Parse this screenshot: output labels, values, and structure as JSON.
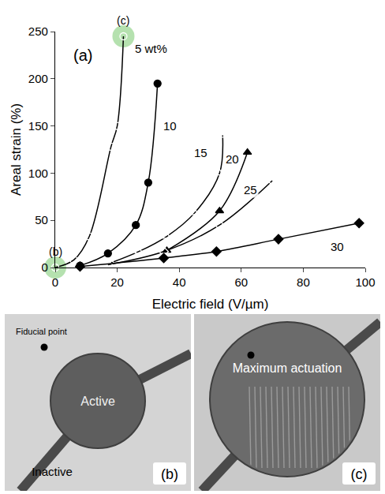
{
  "chart_data": {
    "type": "scatter",
    "x_label": "Electric field (V/µm)",
    "y_label": "Areal strain (%)",
    "xlim": [
      0,
      100
    ],
    "xticks": [
      0,
      20,
      40,
      60,
      80,
      100
    ],
    "ylim": [
      0,
      250
    ],
    "yticks": [
      0,
      50,
      100,
      150,
      200,
      250
    ],
    "grid": false,
    "series": [
      {
        "name": "5 wt%",
        "color": "#000000",
        "marker": "circle-open",
        "line_style": "solid",
        "x": [
          0,
          6,
          11,
          18,
          20,
          22
        ],
        "values": [
          0,
          8,
          33,
          128,
          150,
          245
        ],
        "label_x": 31,
        "label_y": 232
      },
      {
        "name": "10",
        "color": "#000000",
        "marker": "circle",
        "line_style": "solid",
        "x": [
          8,
          17,
          26,
          30,
          33
        ],
        "values": [
          2,
          15,
          45,
          90,
          195
        ],
        "label_x": 37,
        "label_y": 150
      },
      {
        "name": "15",
        "color": "#000000",
        "marker": "triangle-up-open",
        "line_style": "solid",
        "x": [
          18,
          27,
          36,
          45,
          53,
          54
        ],
        "values": [
          5,
          17,
          33,
          58,
          100,
          140
        ],
        "label_x": 47,
        "label_y": 122
      },
      {
        "name": "20",
        "color": "#000000",
        "marker": "triangle-up",
        "line_style": "solid",
        "x": [
          36,
          53,
          62
        ],
        "values": [
          18,
          60,
          122
        ],
        "label_x": 57,
        "label_y": 115
      },
      {
        "name": "25",
        "color": "#000000",
        "marker": "diamond-open",
        "line_style": "solid",
        "x": [
          17,
          35,
          53,
          70
        ],
        "values": [
          3,
          17,
          45,
          92
        ],
        "label_x": 63,
        "label_y": 82
      },
      {
        "name": "30",
        "color": "#000000",
        "marker": "diamond",
        "line_style": "solid",
        "x": [
          8,
          35,
          52,
          72,
          98
        ],
        "values": [
          1,
          10,
          17,
          30,
          47
        ],
        "label_x": 91,
        "label_y": 22
      }
    ],
    "annotations": [
      {
        "text": "(a)",
        "x": 9,
        "y": 225
      },
      {
        "text": "(b)",
        "x": 0,
        "y": 0,
        "highlight": true
      },
      {
        "text": "(c)",
        "x": 22,
        "y": 245,
        "highlight": true
      }
    ]
  },
  "photos": [
    {
      "label": "(b)",
      "fiducial": "Fiducial point",
      "center_text": "Active",
      "outside_text": "Inactive"
    },
    {
      "label": "(c)",
      "center_text": "Maximum actuation"
    }
  ]
}
